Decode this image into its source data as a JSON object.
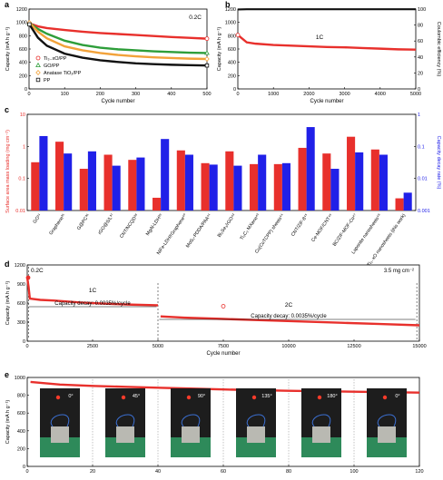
{
  "panels": {
    "a": "a",
    "b": "b",
    "c": "c",
    "d": "d",
    "e": "e"
  },
  "chart_data": [
    {
      "id": "a",
      "type": "line",
      "title": "",
      "annotation": "0.2C",
      "xlabel": "Cycle number",
      "ylabel": "Capacity (mA h g⁻¹)",
      "xlim": [
        0,
        500
      ],
      "ylim": [
        0,
        1200
      ],
      "xticks": [
        0,
        100,
        200,
        300,
        400,
        500
      ],
      "yticks": [
        0,
        200,
        400,
        600,
        800,
        1000,
        1200
      ],
      "legend_position": "bottom-left",
      "x": [
        1,
        25,
        50,
        100,
        150,
        200,
        250,
        300,
        350,
        400,
        450,
        500
      ],
      "series": [
        {
          "name": "Ti₃₋xO/PP",
          "color": "#e8302c",
          "marker": "circle",
          "values": [
            985,
            940,
            915,
            885,
            860,
            840,
            825,
            810,
            795,
            780,
            768,
            755
          ]
        },
        {
          "name": "GO/PP",
          "color": "#2e9e3a",
          "marker": "triangle",
          "values": [
            990,
            900,
            830,
            725,
            660,
            620,
            595,
            580,
            565,
            555,
            545,
            540
          ]
        },
        {
          "name": "Anatase TiO₂/PP",
          "color": "#f2a23a",
          "marker": "diamond",
          "values": [
            995,
            860,
            760,
            640,
            580,
            540,
            510,
            490,
            475,
            465,
            455,
            450
          ]
        },
        {
          "name": "PP",
          "color": "#111111",
          "marker": "square",
          "values": [
            970,
            770,
            650,
            530,
            470,
            430,
            405,
            385,
            372,
            363,
            357,
            352
          ]
        }
      ]
    },
    {
      "id": "b",
      "type": "scatter",
      "annotation": "1C",
      "xlabel": "Cycle number",
      "ylabel": "Capacity (mA h g⁻¹)",
      "y2label": "Coulombic efficiency (%)",
      "xlim": [
        0,
        5000
      ],
      "ylim": [
        0,
        1200
      ],
      "y2lim": [
        0,
        100
      ],
      "xticks": [
        0,
        1000,
        2000,
        3000,
        4000,
        5000
      ],
      "yticks": [
        0,
        200,
        400,
        600,
        800,
        1000,
        1200
      ],
      "y2ticks": [
        0,
        20,
        40,
        60,
        80,
        100
      ],
      "x": [
        0,
        250,
        500,
        1000,
        1500,
        2000,
        2500,
        3000,
        3500,
        4000,
        4500,
        5000
      ],
      "series": [
        {
          "name": "capacity",
          "color": "#e8302c",
          "axis": "left",
          "values": [
            810,
            700,
            680,
            660,
            650,
            640,
            630,
            625,
            615,
            605,
            595,
            590
          ]
        },
        {
          "name": "efficiency",
          "color": "#111111",
          "axis": "right",
          "values": [
            99.5,
            99.8,
            99.8,
            99.8,
            99.8,
            99.8,
            99.8,
            99.8,
            99.8,
            99.8,
            99.8,
            99.8
          ]
        }
      ]
    },
    {
      "id": "c",
      "type": "bar",
      "ylabel": "Surface area mass loading (mg cm⁻²)",
      "y2label": "Capacity decay rate (%)",
      "yscale": "log",
      "ylim": [
        0.01,
        10
      ],
      "y2lim": [
        0.001,
        1
      ],
      "yticks": [
        0.01,
        0.1,
        1,
        10
      ],
      "y2ticks": [
        0.001,
        0.01,
        0.1,
        1
      ],
      "categories": [
        "GO¹¹",
        "Graphene³⁵",
        "G@PC³⁶",
        "rGO@S/L³⁷",
        "CNT/NCQD³⁸",
        "MgAl-LDH³⁹",
        "NiFe-LDH/rGraphene⁴⁰",
        "MoS₂-PDDA/PAA⁴¹",
        "Bi₂Se₃/rGO⁴²",
        "Ti₃C₂ MXene⁴³",
        "Cu(CuTCPP) sheets⁴⁴",
        "CNT/ZIF-8⁴⁵",
        "Ce-MOF/CNT⁴⁶",
        "BC/ZIF-MOF-Co⁴⁷",
        "Laponite nanosheets⁴⁸",
        "Ti₃₋xO nanosheets (this work)"
      ],
      "series": [
        {
          "name": "Surface area mass loading",
          "color": "#e8302c",
          "axis": "left",
          "values": [
            0.32,
            1.4,
            0.2,
            0.55,
            0.38,
            0.025,
            0.75,
            0.3,
            0.7,
            0.28,
            0.28,
            0.9,
            0.6,
            2.0,
            0.8,
            0.024
          ]
        },
        {
          "name": "Capacity decay rate",
          "color": "#2020e8",
          "axis": "right",
          "values": [
            0.21,
            0.06,
            0.07,
            0.025,
            0.045,
            0.17,
            0.055,
            0.027,
            0.025,
            0.055,
            0.03,
            0.4,
            0.02,
            0.065,
            0.055,
            0.0036
          ]
        }
      ]
    },
    {
      "id": "d",
      "type": "scatter",
      "annotations": [
        "0.2C",
        "1C",
        "2C",
        "3.5 mg cm⁻²",
        "Capacity decay: 0.0035%/cycle",
        "Capacity decay: 0.0035%/cycle"
      ],
      "xlabel": "Cycle number",
      "ylabel": "Capacity (mA h g⁻¹)",
      "xlim": [
        0,
        15000
      ],
      "ylim": [
        0,
        1200
      ],
      "xticks": [
        0,
        2500,
        5000,
        7500,
        10000,
        12500,
        15000
      ],
      "yticks": [
        0,
        300,
        600,
        900,
        1200
      ],
      "x": [
        0,
        50,
        100,
        500,
        1000,
        2000,
        3000,
        4000,
        5000,
        5100,
        6000,
        7500,
        9000,
        10500,
        12000,
        13500,
        15000
      ],
      "values": [
        1000,
        860,
        670,
        650,
        640,
        610,
        590,
        575,
        565,
        390,
        370,
        350,
        330,
        310,
        290,
        270,
        250
      ],
      "color": "#e8302c"
    },
    {
      "id": "e",
      "type": "scatter",
      "xlabel": "",
      "ylabel": "Capacity (mA h g⁻¹)",
      "xlim": [
        0,
        120
      ],
      "ylim": [
        0,
        1000
      ],
      "xticks": [
        0,
        20,
        40,
        60,
        80,
        100,
        120
      ],
      "yticks": [
        0,
        200,
        400,
        600,
        800,
        1000
      ],
      "angles": [
        "0°",
        "45°",
        "90°",
        "135°",
        "180°",
        "0°"
      ],
      "x": [
        1,
        10,
        20,
        30,
        40,
        50,
        60,
        70,
        80,
        90,
        100,
        110,
        120
      ],
      "values": [
        950,
        920,
        905,
        895,
        885,
        875,
        865,
        858,
        850,
        845,
        840,
        835,
        830
      ],
      "color": "#e8302c"
    }
  ]
}
